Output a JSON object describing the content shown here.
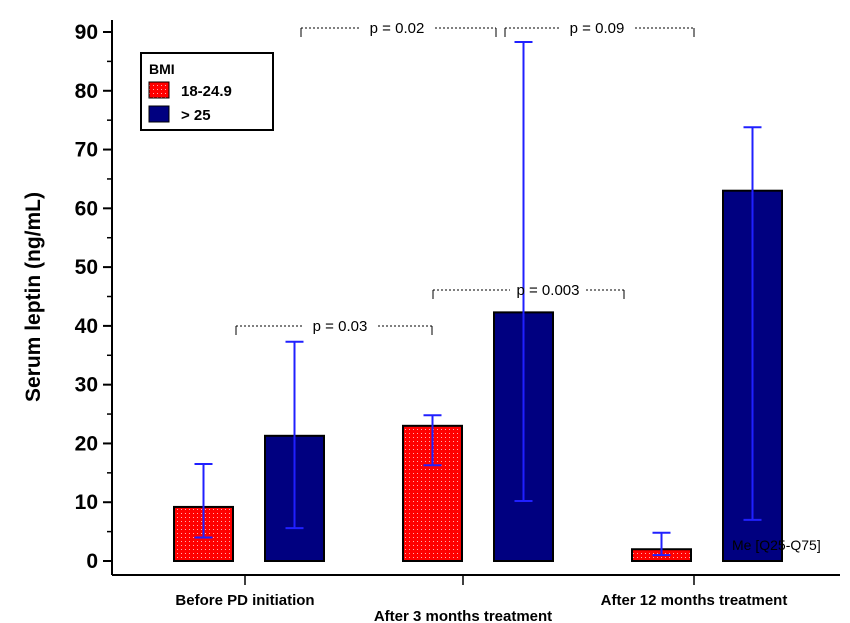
{
  "chart_data": {
    "type": "bar",
    "ylabel": "Serum leptin (ng/mL)",
    "ylim": [
      0,
      90
    ],
    "yticks": [
      "0",
      "10",
      "20",
      "30",
      "40",
      "50",
      "60",
      "70",
      "80",
      "90"
    ],
    "categories": [
      "Before PD initiation",
      "After 3 months treatment",
      "After 12 months treatment"
    ],
    "legend": {
      "title": "BMI",
      "position": "top-left"
    },
    "series": [
      {
        "name": "18-24.9",
        "color": "#ff0000",
        "pattern": "dotted",
        "values": [
          9.2,
          23.0,
          2.0
        ],
        "q25": [
          4.0,
          16.3,
          1.0
        ],
        "q75": [
          16.5,
          24.8,
          4.8
        ]
      },
      {
        "name": "> 25",
        "color": "#000080",
        "pattern": "solid",
        "values": [
          21.3,
          42.3,
          63.0
        ],
        "q25": [
          5.6,
          10.2,
          7.0
        ],
        "q75": [
          37.3,
          88.3,
          73.8
        ]
      }
    ],
    "annotations": [
      {
        "text": "p = 0.03"
      },
      {
        "text": "p = 0.003"
      },
      {
        "text": "p = 0.02"
      },
      {
        "text": "p = 0.09"
      }
    ],
    "note": "Me [Q25-Q75]",
    "grid": false
  }
}
